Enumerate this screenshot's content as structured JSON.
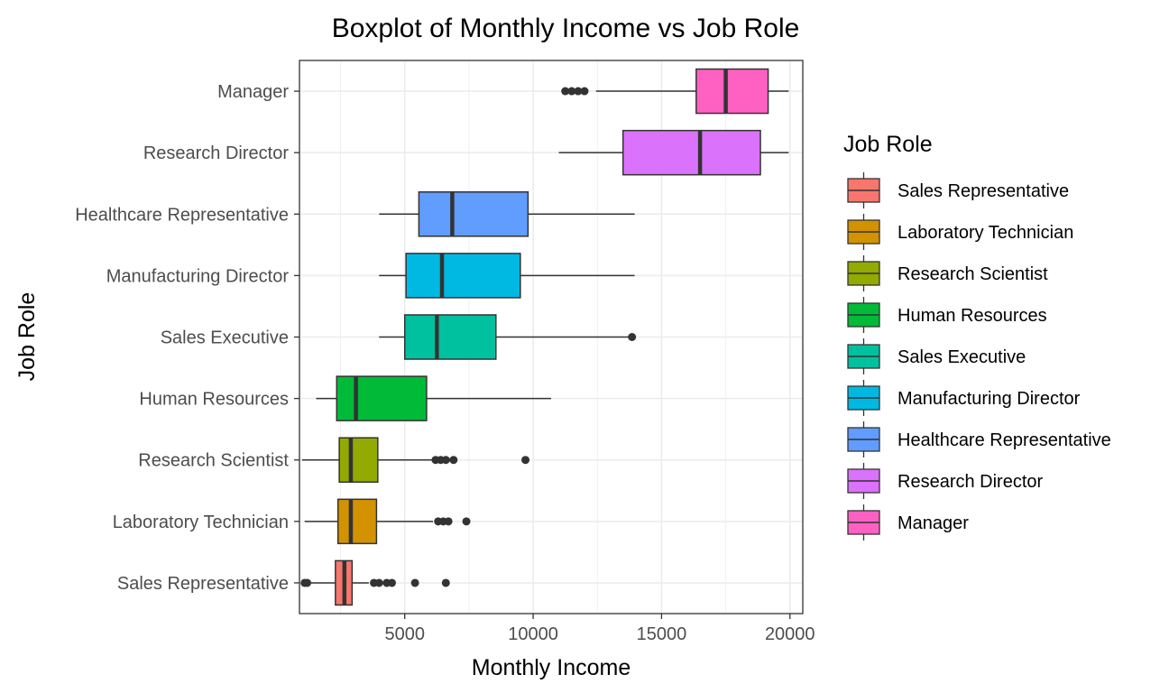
{
  "chart_data": {
    "type": "boxplot",
    "title": "Boxplot of Monthly Income vs Job Role",
    "xlabel": "Monthly Income",
    "ylabel": "Job Role",
    "xlim": [
      900,
      20500
    ],
    "x_ticks": [
      5000,
      10000,
      15000,
      20000
    ],
    "x_tick_labels": [
      "5000",
      "10000",
      "15000",
      "20000"
    ],
    "grid": true,
    "legend": {
      "title": "Job Role",
      "position": "right"
    },
    "categories": [
      "Sales Representative",
      "Laboratory Technician",
      "Research Scientist",
      "Human Resources",
      "Sales Executive",
      "Manufacturing Director",
      "Healthcare Representative",
      "Research Director",
      "Manager"
    ],
    "colors": [
      "#F8766D",
      "#D39200",
      "#93AA00",
      "#00BA38",
      "#00C19F",
      "#00B9E3",
      "#619CFF",
      "#DB72FB",
      "#FF61C3"
    ],
    "boxes": [
      {
        "name": "Sales Representative",
        "min": 1050,
        "q1": 2300,
        "median": 2650,
        "q3": 2950,
        "max": 3600,
        "outliers": [
          1100,
          1200,
          3800,
          4000,
          4300,
          4500,
          5400,
          6600
        ]
      },
      {
        "name": "Laboratory Technician",
        "min": 1100,
        "q1": 2400,
        "median": 2900,
        "q3": 3900,
        "max": 6100,
        "outliers": [
          6300,
          6500,
          6700,
          7400
        ]
      },
      {
        "name": "Research Scientist",
        "min": 1000,
        "q1": 2450,
        "median": 2900,
        "q3": 3950,
        "max": 6100,
        "outliers": [
          6200,
          6400,
          6600,
          6900,
          9700
        ]
      },
      {
        "name": "Human Resources",
        "min": 1550,
        "q1": 2350,
        "median": 3100,
        "q3": 5850,
        "max": 10700,
        "outliers": []
      },
      {
        "name": "Sales Executive",
        "min": 4000,
        "q1": 5000,
        "median": 6250,
        "q3": 8550,
        "max": 13850,
        "outliers": [
          13850
        ]
      },
      {
        "name": "Manufacturing Director",
        "min": 4000,
        "q1": 5050,
        "median": 6450,
        "q3": 9500,
        "max": 13950,
        "outliers": []
      },
      {
        "name": "Healthcare Representative",
        "min": 4000,
        "q1": 5550,
        "median": 6850,
        "q3": 9800,
        "max": 13950,
        "outliers": []
      },
      {
        "name": "Research Director",
        "min": 11000,
        "q1": 13500,
        "median": 16500,
        "q3": 18850,
        "max": 19950,
        "outliers": []
      },
      {
        "name": "Manager",
        "min": 12450,
        "q1": 16350,
        "median": 17500,
        "q3": 19150,
        "max": 19950,
        "outliers": [
          11250,
          11500,
          11750,
          12000
        ]
      }
    ]
  }
}
